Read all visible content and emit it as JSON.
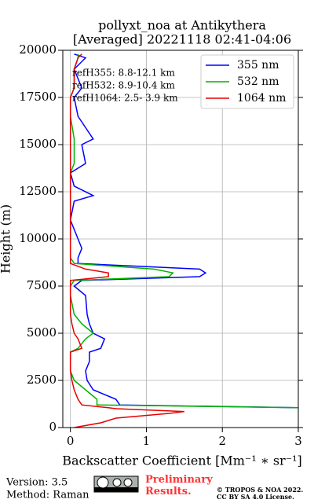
{
  "chart_data": {
    "type": "profile",
    "title": "pollyxt_noa at Antikythera",
    "subtitle": "[Averaged] 20221118 02:41-04:06",
    "xlabel": "Backscatter Coefficient [Mm⁻¹ ∗ sr⁻¹]",
    "ylabel": "Height (m)",
    "annotations": [
      "refH355:  8.8-12.1 km",
      "refH532:  8.9-10.4 km",
      "refH1064:  2.5- 3.9 km"
    ],
    "xlim": [
      -0.1,
      3
    ],
    "xticks": [
      0,
      1,
      2,
      3
    ],
    "ylim": [
      0,
      20000
    ],
    "yticks": [
      0,
      2500,
      5000,
      7500,
      10000,
      12500,
      15000,
      17500,
      20000
    ],
    "grid": true,
    "legend": "upper right",
    "heights": [
      0,
      250,
      500,
      750,
      850,
      1000,
      1050,
      1200,
      1500,
      2000,
      2500,
      3000,
      3500,
      4000,
      4200,
      4700,
      5000,
      5500,
      6000,
      7000,
      7500,
      7800,
      8000,
      8200,
      8400,
      8700,
      9000,
      9500,
      10000,
      11000,
      12000,
      12300,
      12800,
      13500,
      14000,
      15000,
      15300,
      16500,
      17500,
      18000,
      19000,
      19600,
      19800
    ],
    "series": [
      {
        "name": "355 nm",
        "color": "#0000ff",
        "values": [
          null,
          null,
          null,
          null,
          null,
          null,
          3.0,
          0.65,
          0.6,
          0.3,
          0.22,
          0.2,
          0.25,
          0.25,
          0.4,
          0.45,
          0.3,
          0.25,
          0.22,
          0.2,
          0.05,
          0.15,
          1.7,
          1.78,
          1.7,
          0.1,
          0.1,
          0.15,
          0.1,
          0.0,
          0.05,
          0.3,
          0.05,
          0.0,
          0.2,
          0.15,
          0.3,
          0.1,
          0.05,
          0.15,
          0.05,
          0.2,
          0.05
        ]
      },
      {
        "name": "532 nm",
        "color": "#00b400",
        "values": [
          null,
          null,
          null,
          null,
          null,
          null,
          3.0,
          0.35,
          0.35,
          0.2,
          0.05,
          0.0,
          0.0,
          0.0,
          0.1,
          0.2,
          0.3,
          0.15,
          0.05,
          0.0,
          0.0,
          0.05,
          1.3,
          1.35,
          1.1,
          0.05,
          0.0,
          0.0,
          0.0,
          0.0,
          0.0,
          0.0,
          0.0,
          0.0,
          0.05,
          0.05,
          0.05,
          0.0,
          0.0,
          0.05,
          0.05,
          0.1,
          0.1
        ]
      },
      {
        "name": "1064 nm",
        "color": "#e60000",
        "values": [
          0.05,
          0.4,
          0.6,
          1.3,
          1.5,
          0.6,
          0.5,
          0.15,
          0.1,
          0.05,
          0.02,
          0.0,
          0.0,
          0.0,
          0.15,
          0.1,
          0.05,
          0.02,
          0.0,
          0.0,
          0.0,
          0.0,
          0.5,
          0.5,
          0.2,
          0.0,
          0.0,
          0.0,
          0.0,
          0.0,
          0.0,
          0.0,
          0.0,
          0.0,
          0.0,
          0.0,
          0.0,
          0.0,
          0.0,
          0.05,
          0.05,
          0.1,
          0.15
        ]
      }
    ]
  },
  "footer": {
    "version": "Version: 3.5",
    "method": "Method: Raman",
    "status": "Preliminary Results.",
    "copyright": "© TROPOS & NOA 2022.",
    "license": "CC BY SA 4.0 License."
  }
}
